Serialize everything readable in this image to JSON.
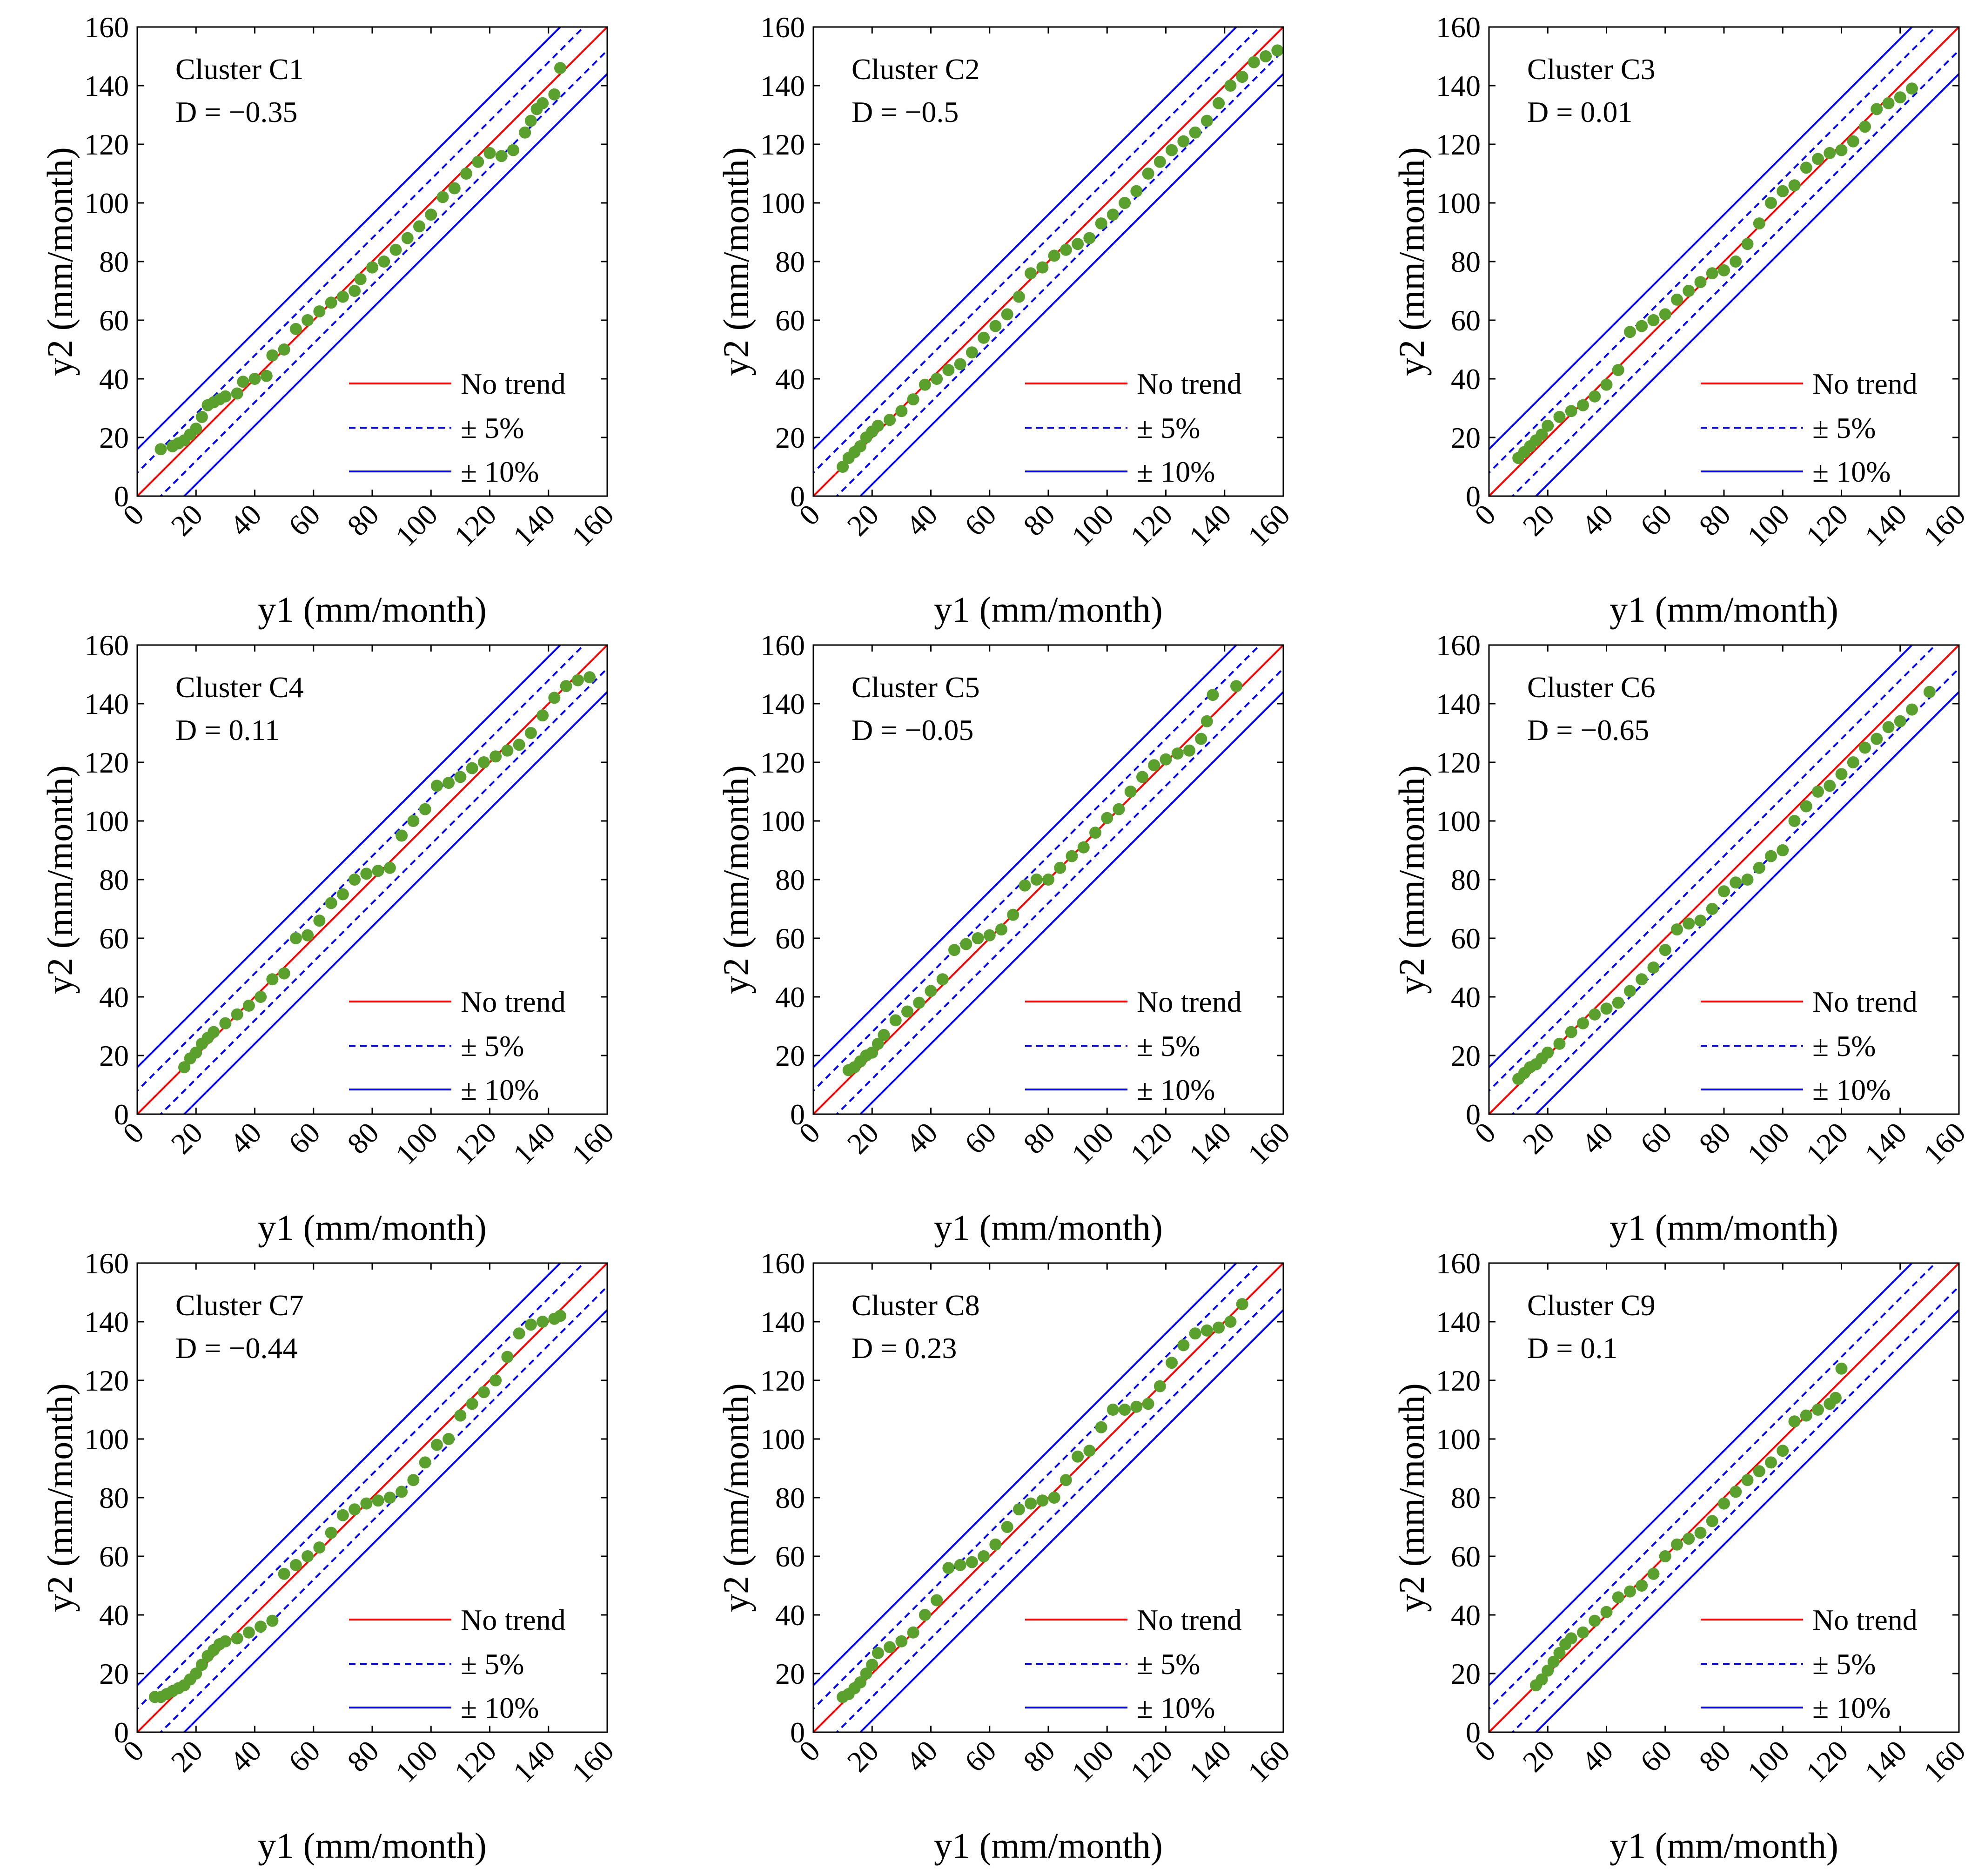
{
  "layout": "3x3 grid of scatter panels",
  "colors": {
    "no_trend": "#ff0000",
    "band": "#0000ff",
    "points": "#5aa02c",
    "axes": "#000000"
  },
  "legend": {
    "placement": "bottom-right",
    "entries": [
      "No trend",
      "± 5%",
      "± 10%"
    ]
  },
  "chart_data": [
    {
      "type": "scatter",
      "title": "Cluster C1",
      "annotation": "D = −0.35",
      "xlabel": "y1 (mm/month)",
      "ylabel": "y2 (mm/month)",
      "xlim": [
        0,
        160
      ],
      "ylim": [
        0,
        160
      ],
      "xticks": [
        "0",
        "20",
        "40",
        "60",
        "80",
        "100",
        "120",
        "140",
        "160"
      ],
      "yticks": [
        "0",
        "20",
        "40",
        "60",
        "80",
        "100",
        "120",
        "140",
        "160"
      ],
      "reference_lines": [
        "No trend",
        "± 5%",
        "± 10%"
      ],
      "series": [
        {
          "x": [
            8,
            12,
            14,
            16,
            18,
            20,
            22,
            24,
            26,
            28,
            30,
            34,
            36,
            40,
            44,
            46,
            50,
            54,
            58,
            62,
            66,
            70,
            74,
            76,
            80,
            84,
            88,
            92,
            96,
            100,
            104,
            108,
            112,
            116,
            120,
            124,
            128,
            132,
            134,
            136,
            138,
            142,
            144
          ],
          "y": [
            16,
            17,
            18,
            19,
            21,
            23,
            27,
            31,
            32,
            33,
            34,
            35,
            39,
            40,
            41,
            48,
            50,
            57,
            60,
            63,
            66,
            68,
            70,
            74,
            78,
            80,
            84,
            88,
            92,
            96,
            102,
            105,
            110,
            114,
            117,
            116,
            118,
            124,
            128,
            132,
            134,
            137,
            146
          ]
        }
      ]
    },
    {
      "type": "scatter",
      "title": "Cluster C2",
      "annotation": "D = −0.5",
      "xlabel": "y1 (mm/month)",
      "ylabel": "y2 (mm/month)",
      "xlim": [
        0,
        160
      ],
      "ylim": [
        0,
        160
      ],
      "xticks": [
        "0",
        "20",
        "40",
        "60",
        "80",
        "100",
        "120",
        "140",
        "160"
      ],
      "yticks": [
        "0",
        "20",
        "40",
        "60",
        "80",
        "100",
        "120",
        "140",
        "160"
      ],
      "reference_lines": [
        "No trend",
        "± 5%",
        "± 10%"
      ],
      "series": [
        {
          "x": [
            10,
            12,
            14,
            16,
            18,
            20,
            22,
            26,
            30,
            34,
            38,
            42,
            46,
            50,
            54,
            58,
            62,
            66,
            70,
            74,
            78,
            82,
            86,
            90,
            94,
            98,
            102,
            106,
            110,
            114,
            118,
            122,
            126,
            130,
            134,
            138,
            142,
            146,
            150,
            154,
            158
          ],
          "y": [
            10,
            13,
            15,
            17,
            20,
            22,
            24,
            26,
            29,
            33,
            38,
            40,
            43,
            45,
            49,
            54,
            58,
            62,
            68,
            76,
            78,
            82,
            84,
            86,
            88,
            93,
            96,
            100,
            104,
            110,
            114,
            118,
            121,
            124,
            128,
            134,
            140,
            143,
            148,
            150,
            152
          ]
        }
      ]
    },
    {
      "type": "scatter",
      "title": "Cluster C3",
      "annotation": "D = 0.01",
      "xlabel": "y1 (mm/month)",
      "ylabel": "y2 (mm/month)",
      "xlim": [
        0,
        160
      ],
      "ylim": [
        0,
        160
      ],
      "xticks": [
        "0",
        "20",
        "40",
        "60",
        "80",
        "100",
        "120",
        "140",
        "160"
      ],
      "yticks": [
        "0",
        "20",
        "40",
        "60",
        "80",
        "100",
        "120",
        "140",
        "160"
      ],
      "reference_lines": [
        "No trend",
        "± 5%",
        "± 10%"
      ],
      "series": [
        {
          "x": [
            10,
            12,
            14,
            16,
            18,
            20,
            24,
            28,
            32,
            36,
            40,
            44,
            48,
            52,
            56,
            60,
            64,
            68,
            72,
            76,
            80,
            84,
            88,
            92,
            96,
            100,
            104,
            108,
            112,
            116,
            120,
            124,
            128,
            132,
            136,
            140,
            144
          ],
          "y": [
            13,
            15,
            17,
            19,
            21,
            24,
            27,
            29,
            31,
            34,
            38,
            43,
            56,
            58,
            60,
            62,
            67,
            70,
            73,
            76,
            77,
            80,
            86,
            93,
            100,
            104,
            106,
            112,
            115,
            117,
            118,
            121,
            126,
            132,
            134,
            136,
            139
          ]
        }
      ]
    },
    {
      "type": "scatter",
      "title": "Cluster C4",
      "annotation": "D = 0.11",
      "xlabel": "y1 (mm/month)",
      "ylabel": "y2 (mm/month)",
      "xlim": [
        0,
        160
      ],
      "ylim": [
        0,
        160
      ],
      "xticks": [
        "0",
        "20",
        "40",
        "60",
        "80",
        "100",
        "120",
        "140",
        "160"
      ],
      "yticks": [
        "0",
        "20",
        "40",
        "60",
        "80",
        "100",
        "120",
        "140",
        "160"
      ],
      "reference_lines": [
        "No trend",
        "± 5%",
        "± 10%"
      ],
      "series": [
        {
          "x": [
            16,
            18,
            20,
            22,
            24,
            26,
            30,
            34,
            38,
            42,
            46,
            50,
            54,
            58,
            62,
            66,
            70,
            74,
            78,
            82,
            86,
            90,
            94,
            98,
            102,
            106,
            110,
            114,
            118,
            122,
            126,
            130,
            134,
            138,
            142,
            146,
            150,
            154
          ],
          "y": [
            16,
            19,
            21,
            24,
            26,
            28,
            31,
            34,
            37,
            40,
            46,
            48,
            60,
            61,
            66,
            72,
            75,
            80,
            82,
            83,
            84,
            95,
            100,
            104,
            112,
            113,
            115,
            118,
            120,
            122,
            124,
            126,
            130,
            136,
            142,
            146,
            148,
            149
          ]
        }
      ]
    },
    {
      "type": "scatter",
      "title": "Cluster C5",
      "annotation": "D = −0.05",
      "xlabel": "y1 (mm/month)",
      "ylabel": "y2 (mm/month)",
      "xlim": [
        0,
        160
      ],
      "ylim": [
        0,
        160
      ],
      "xticks": [
        "0",
        "20",
        "40",
        "60",
        "80",
        "100",
        "120",
        "140",
        "160"
      ],
      "yticks": [
        "0",
        "20",
        "40",
        "60",
        "80",
        "100",
        "120",
        "140",
        "160"
      ],
      "reference_lines": [
        "No trend",
        "± 5%",
        "± 10%"
      ],
      "series": [
        {
          "x": [
            12,
            14,
            16,
            18,
            20,
            22,
            24,
            28,
            32,
            36,
            40,
            44,
            48,
            52,
            56,
            60,
            64,
            68,
            72,
            76,
            80,
            84,
            88,
            92,
            96,
            100,
            104,
            108,
            112,
            116,
            120,
            124,
            128,
            132,
            134,
            136,
            144
          ],
          "y": [
            15,
            16,
            18,
            20,
            21,
            24,
            27,
            32,
            35,
            38,
            42,
            46,
            56,
            58,
            60,
            61,
            63,
            68,
            78,
            80,
            80,
            84,
            88,
            91,
            96,
            101,
            104,
            110,
            115,
            119,
            121,
            123,
            124,
            128,
            134,
            143,
            146
          ]
        }
      ]
    },
    {
      "type": "scatter",
      "title": "Cluster C6",
      "annotation": "D = −0.65",
      "xlabel": "y1 (mm/month)",
      "ylabel": "y2 (mm/month)",
      "xlim": [
        0,
        160
      ],
      "ylim": [
        0,
        160
      ],
      "xticks": [
        "0",
        "20",
        "40",
        "60",
        "80",
        "100",
        "120",
        "140",
        "160"
      ],
      "yticks": [
        "0",
        "20",
        "40",
        "60",
        "80",
        "100",
        "120",
        "140",
        "160"
      ],
      "reference_lines": [
        "No trend",
        "± 5%",
        "± 10%"
      ],
      "series": [
        {
          "x": [
            10,
            12,
            14,
            16,
            18,
            20,
            24,
            28,
            32,
            36,
            40,
            44,
            48,
            52,
            56,
            60,
            64,
            68,
            72,
            76,
            80,
            84,
            88,
            92,
            96,
            100,
            104,
            108,
            112,
            116,
            120,
            124,
            128,
            132,
            136,
            140,
            144,
            150
          ],
          "y": [
            12,
            14,
            16,
            17,
            19,
            21,
            24,
            28,
            31,
            34,
            36,
            38,
            42,
            46,
            50,
            56,
            63,
            65,
            66,
            70,
            76,
            79,
            80,
            84,
            88,
            90,
            100,
            105,
            110,
            112,
            116,
            120,
            125,
            128,
            132,
            134,
            138,
            144
          ]
        }
      ]
    },
    {
      "type": "scatter",
      "title": "Cluster C7",
      "annotation": "D = −0.44",
      "xlabel": "y1 (mm/month)",
      "ylabel": "y2 (mm/month)",
      "xlim": [
        0,
        160
      ],
      "ylim": [
        0,
        160
      ],
      "xticks": [
        "0",
        "20",
        "40",
        "60",
        "80",
        "100",
        "120",
        "140",
        "160"
      ],
      "yticks": [
        "0",
        "20",
        "40",
        "60",
        "80",
        "100",
        "120",
        "140",
        "160"
      ],
      "reference_lines": [
        "No trend",
        "± 5%",
        "± 10%"
      ],
      "series": [
        {
          "x": [
            6,
            8,
            10,
            12,
            14,
            16,
            18,
            20,
            22,
            24,
            26,
            28,
            30,
            34,
            38,
            42,
            46,
            50,
            54,
            58,
            62,
            66,
            70,
            74,
            78,
            82,
            86,
            90,
            94,
            98,
            102,
            106,
            110,
            114,
            118,
            122,
            126,
            130,
            134,
            138,
            142,
            144
          ],
          "y": [
            12,
            12,
            13,
            14,
            15,
            16,
            18,
            20,
            23,
            26,
            28,
            30,
            31,
            32,
            34,
            36,
            38,
            54,
            57,
            60,
            63,
            68,
            74,
            76,
            78,
            79,
            80,
            82,
            86,
            92,
            98,
            100,
            108,
            112,
            116,
            120,
            128,
            136,
            139,
            140,
            141,
            142
          ]
        }
      ]
    },
    {
      "type": "scatter",
      "title": "Cluster C8",
      "annotation": "D = 0.23",
      "xlabel": "y1 (mm/month)",
      "ylabel": "y2 (mm/month)",
      "xlim": [
        0,
        160
      ],
      "ylim": [
        0,
        160
      ],
      "xticks": [
        "0",
        "20",
        "40",
        "60",
        "80",
        "100",
        "120",
        "140",
        "160"
      ],
      "yticks": [
        "0",
        "20",
        "40",
        "60",
        "80",
        "100",
        "120",
        "140",
        "160"
      ],
      "reference_lines": [
        "No trend",
        "± 5%",
        "± 10%"
      ],
      "series": [
        {
          "x": [
            10,
            12,
            14,
            16,
            18,
            20,
            22,
            26,
            30,
            34,
            38,
            42,
            46,
            50,
            54,
            58,
            62,
            66,
            70,
            74,
            78,
            82,
            86,
            90,
            94,
            98,
            102,
            106,
            110,
            114,
            118,
            122,
            126,
            130,
            134,
            138,
            142,
            146
          ],
          "y": [
            12,
            13,
            15,
            17,
            20,
            23,
            27,
            29,
            31,
            34,
            40,
            45,
            56,
            57,
            58,
            60,
            64,
            70,
            76,
            78,
            79,
            80,
            86,
            94,
            96,
            104,
            110,
            110,
            111,
            112,
            118,
            126,
            132,
            136,
            137,
            138,
            140,
            146
          ]
        }
      ]
    },
    {
      "type": "scatter",
      "title": "Cluster C9",
      "annotation": "D = 0.1",
      "xlabel": "y1 (mm/month)",
      "ylabel": "y2 (mm/month)",
      "xlim": [
        0,
        160
      ],
      "ylim": [
        0,
        160
      ],
      "xticks": [
        "0",
        "20",
        "40",
        "60",
        "80",
        "100",
        "120",
        "140",
        "160"
      ],
      "yticks": [
        "0",
        "20",
        "40",
        "60",
        "80",
        "100",
        "120",
        "140",
        "160"
      ],
      "reference_lines": [
        "No trend",
        "± 5%",
        "± 10%"
      ],
      "series": [
        {
          "x": [
            16,
            18,
            20,
            22,
            24,
            26,
            28,
            32,
            36,
            40,
            44,
            48,
            52,
            56,
            60,
            64,
            68,
            72,
            76,
            80,
            84,
            88,
            92,
            96,
            100,
            104,
            108,
            112,
            116,
            118,
            120
          ],
          "y": [
            16,
            18,
            21,
            24,
            27,
            30,
            32,
            34,
            38,
            41,
            46,
            48,
            50,
            54,
            60,
            64,
            66,
            68,
            72,
            78,
            82,
            86,
            89,
            92,
            96,
            106,
            108,
            110,
            112,
            114,
            124
          ]
        }
      ]
    }
  ]
}
